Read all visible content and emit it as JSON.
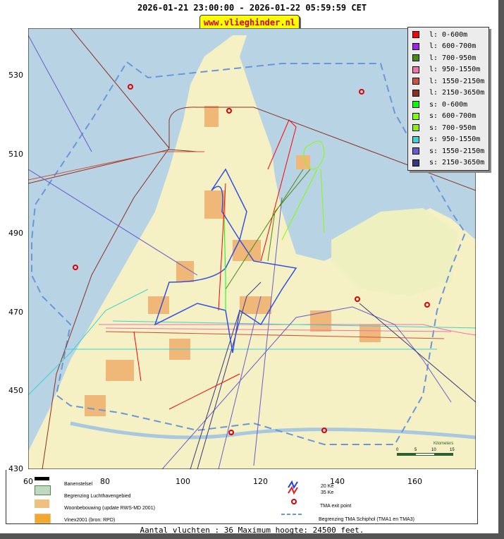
{
  "header": {
    "title": "2026-01-21 23:00:00 - 2026-01-22 05:59:59 CET",
    "site": "www.vlieghinder.nl"
  },
  "axes": {
    "x_ticks": [
      "60",
      "80",
      "100",
      "120",
      "140",
      "160"
    ],
    "y_ticks": [
      "530",
      "510",
      "490",
      "470",
      "450",
      "430"
    ]
  },
  "legend": [
    {
      "label": "l: 0-600m",
      "color": "#ff0000"
    },
    {
      "label": "l: 600-700m",
      "color": "#a020f0"
    },
    {
      "label": "l: 700-950m",
      "color": "#4a8a10"
    },
    {
      "label": "l: 950-1550m",
      "color": "#f070b0"
    },
    {
      "label": "l: 1550-2150m",
      "color": "#d05040"
    },
    {
      "label": "l: 2150-3650m",
      "color": "#8b3020"
    },
    {
      "label": "s: 0-600m",
      "color": "#00ff00"
    },
    {
      "label": "s: 600-700m",
      "color": "#80ff00"
    },
    {
      "label": "s: 700-950m",
      "color": "#90f010"
    },
    {
      "label": "s: 950-1550m",
      "color": "#40d0d0"
    },
    {
      "label": "s: 1550-2150m",
      "color": "#6a5acd"
    },
    {
      "label": "s: 2150-3650m",
      "color": "#383880"
    }
  ],
  "scalebar": {
    "title": "Kilometers",
    "ticks": [
      "0",
      "5",
      "10",
      "15"
    ]
  },
  "map_legend": {
    "runways": "Banenstelsel",
    "airport_boundary": "Begrenzing Luchthavengebied",
    "residential": "Woonbebouwing (update RWS-MD 2001)",
    "vinex": "Vinex2001 (bron: RPD)",
    "ke20": "20 Ke",
    "ke35": "35 Ke",
    "tma_exit": "TMA exit point",
    "tma_boundary": "Begrenzing TMA Schiphol  (TMA1 en TMA3)"
  },
  "footer": "Aantal vluchten : 36 Maximum hoogte: 24500 feet."
}
